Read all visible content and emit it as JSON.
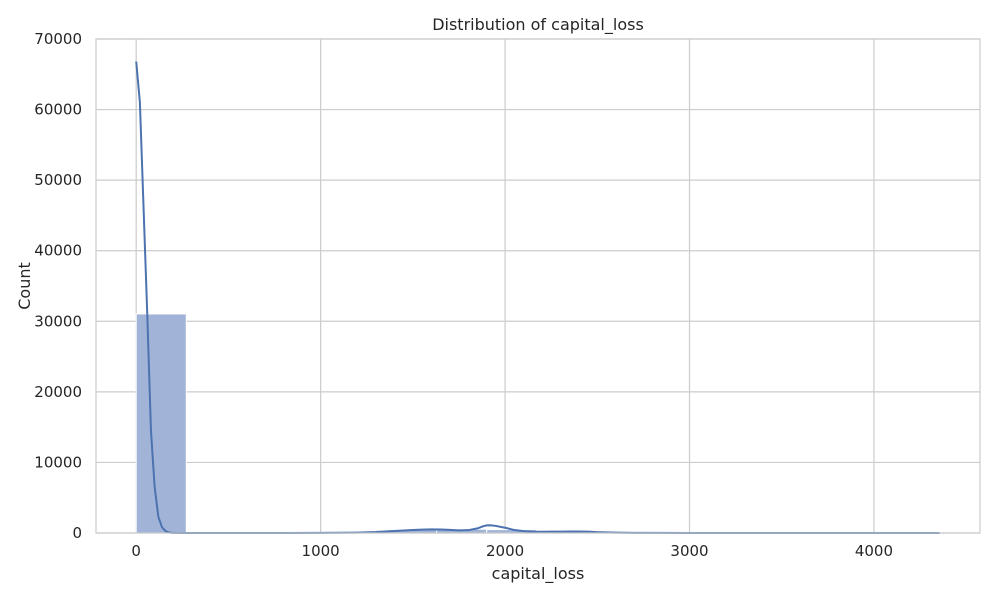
{
  "chart_data": {
    "type": "bar",
    "title": "Distribution of capital_loss",
    "xlabel": "capital_loss",
    "ylabel": "Count",
    "xlim": [
      -218,
      4575
    ],
    "ylim": [
      0,
      70000
    ],
    "x_ticks": [
      0,
      1000,
      2000,
      3000,
      4000
    ],
    "x_tick_labels": [
      "0",
      "1000",
      "2000",
      "3000",
      "4000"
    ],
    "y_ticks": [
      0,
      10000,
      20000,
      30000,
      40000,
      50000,
      60000,
      70000
    ],
    "y_tick_labels": [
      "0",
      "10000",
      "20000",
      "30000",
      "40000",
      "50000",
      "60000",
      "70000"
    ],
    "grid": true,
    "colors": {
      "bar_fill": "#a1b4d8",
      "bar_edge": "#ffffff",
      "kde_line": "#4c72b0",
      "grid": "#cccccc",
      "spine": "#cccccc"
    },
    "bins": {
      "edges": [
        0,
        271.5,
        543,
        814.5,
        1086,
        1357.5,
        1629,
        1900.5,
        2172,
        2443.5,
        2715,
        2986.5,
        3258,
        3529.5,
        3801,
        4072.5,
        4356
      ],
      "counts": [
        31042,
        40,
        90,
        30,
        180,
        450,
        540,
        480,
        220,
        140,
        20,
        10,
        5,
        4,
        3,
        6
      ]
    },
    "kde": {
      "x": [
        0,
        20,
        40,
        60,
        80,
        100,
        120,
        140,
        160,
        180,
        200,
        250,
        300,
        400,
        600,
        800,
        1000,
        1200,
        1300,
        1400,
        1500,
        1550,
        1600,
        1650,
        1700,
        1750,
        1800,
        1850,
        1880,
        1900,
        1920,
        1950,
        2000,
        2050,
        2100,
        2150,
        2200,
        2250,
        2300,
        2350,
        2400,
        2450,
        2500,
        2600,
        2700,
        2800,
        3000,
        3500,
        4000,
        4356
      ],
      "y": [
        66800,
        61000,
        46000,
        31000,
        14500,
        6500,
        2300,
        800,
        250,
        60,
        15,
        2,
        0,
        0,
        0,
        0,
        10,
        60,
        140,
        280,
        420,
        480,
        520,
        490,
        440,
        380,
        400,
        650,
        950,
        1080,
        1100,
        1000,
        750,
        420,
        260,
        190,
        180,
        200,
        190,
        210,
        220,
        190,
        120,
        50,
        20,
        10,
        2,
        0,
        0,
        0
      ]
    }
  }
}
